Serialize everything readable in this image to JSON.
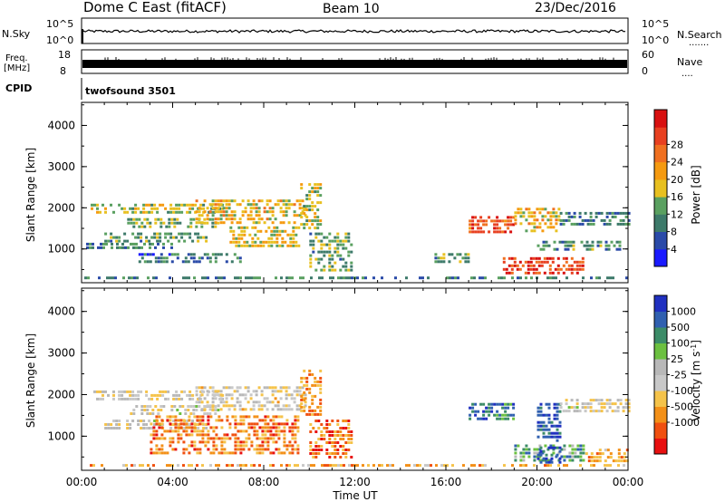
{
  "header": {
    "site": "Dome C East (fitACF)",
    "beam": "Beam 10",
    "date": "23/Dec/2016"
  },
  "noise": {
    "left_label": "N.Sky",
    "right_label": "N.Search",
    "right_dots": ".......",
    "left_ticks": [
      "10^5",
      "10^0"
    ],
    "right_ticks": [
      "10^5",
      "10^0"
    ]
  },
  "freq": {
    "left_label_1": "Freq.",
    "left_label_2": "[MHz]",
    "right_label": "Nave",
    "right_dots": "....",
    "left_ticks": [
      "18",
      "8"
    ],
    "right_ticks": [
      "60",
      "0"
    ]
  },
  "cpid": {
    "label": "CPID",
    "value": "twofsound 3501"
  },
  "colors": {
    "power_scale": [
      "#1a1aff",
      "#2a4aa8",
      "#3d7a6a",
      "#5aa060",
      "#e8c020",
      "#f59a10",
      "#f07020",
      "#e84020",
      "#d81010"
    ],
    "velocity_scale": [
      "#e81010",
      "#f05010",
      "#f39018",
      "#f5c34a",
      "#c8c8c8",
      "#b8b8b8",
      "#6cc040",
      "#3c8c68",
      "#3060b0",
      "#2030c0"
    ]
  },
  "chart_data": [
    {
      "type": "heatmap",
      "name": "power",
      "xlabel": "",
      "ylabel": "Slant Range [km]",
      "x_ticks": [
        "00:00",
        "04:00",
        "08:00",
        "12:00",
        "16:00",
        "20:00",
        "00:00"
      ],
      "y_ticks": [
        "1000",
        "2000",
        "3000",
        "4000"
      ],
      "xlim_hours": [
        0,
        24
      ],
      "ylim_km": [
        180,
        4560
      ],
      "colorbar": {
        "label": "Power [dB]",
        "ticks": [
          "4",
          "8",
          "12",
          "16",
          "20",
          "24",
          "28"
        ]
      },
      "regions": [
        {
          "x": [
            0.4,
            6.2
          ],
          "y": [
            1900,
            2100
          ],
          "level": 0.45
        },
        {
          "x": [
            2.0,
            6.0
          ],
          "y": [
            1550,
            1750
          ],
          "level": 0.4
        },
        {
          "x": [
            1.0,
            5.5
          ],
          "y": [
            1200,
            1400
          ],
          "level": 0.35
        },
        {
          "x": [
            0.2,
            4.0
          ],
          "y": [
            1000,
            1150
          ],
          "level": 0.3
        },
        {
          "x": [
            2.5,
            7.0
          ],
          "y": [
            700,
            900
          ],
          "level": 0.25
        },
        {
          "x": [
            5.0,
            9.8
          ],
          "y": [
            1600,
            2200
          ],
          "level": 0.55
        },
        {
          "x": [
            6.5,
            9.5
          ],
          "y": [
            1050,
            1550
          ],
          "level": 0.5
        },
        {
          "x": [
            9.6,
            10.5
          ],
          "y": [
            1500,
            2600
          ],
          "level": 0.45
        },
        {
          "x": [
            10.0,
            11.8
          ],
          "y": [
            500,
            1400
          ],
          "level": 0.35
        },
        {
          "x": [
            0.0,
            24.0
          ],
          "y": [
            250,
            330
          ],
          "level": 0.28
        },
        {
          "x": [
            17.0,
            19.0
          ],
          "y": [
            1400,
            1800
          ],
          "level": 0.8
        },
        {
          "x": [
            18.5,
            22.0
          ],
          "y": [
            400,
            800
          ],
          "level": 0.85
        },
        {
          "x": [
            19.0,
            21.0
          ],
          "y": [
            1400,
            2000
          ],
          "level": 0.55
        },
        {
          "x": [
            20.0,
            23.6
          ],
          "y": [
            1000,
            1200
          ],
          "level": 0.3
        },
        {
          "x": [
            21.0,
            24.0
          ],
          "y": [
            1600,
            1900
          ],
          "level": 0.25
        },
        {
          "x": [
            15.5,
            17.0
          ],
          "y": [
            700,
            900
          ],
          "level": 0.35
        }
      ]
    },
    {
      "type": "heatmap",
      "name": "velocity",
      "xlabel": "Time UT",
      "ylabel": "Slant Range [km]",
      "x_ticks": [
        "00:00",
        "04:00",
        "08:00",
        "12:00",
        "16:00",
        "20:00",
        "00:00"
      ],
      "y_ticks": [
        "1000",
        "2000",
        "3000",
        "4000"
      ],
      "xlim_hours": [
        0,
        24
      ],
      "ylim_km": [
        180,
        4560
      ],
      "colorbar": {
        "label": "Velocity [m s",
        "label_sup": "-1",
        "label_end": "]",
        "ticks": [
          "1000",
          "500",
          "100",
          "25",
          "-25",
          "-100",
          "-500",
          "-1000"
        ]
      },
      "regions": [
        {
          "x": [
            0.4,
            6.2
          ],
          "y": [
            1900,
            2100
          ],
          "level": 0.45
        },
        {
          "x": [
            2.0,
            6.0
          ],
          "y": [
            1550,
            1750
          ],
          "level": 0.48
        },
        {
          "x": [
            1.0,
            5.5
          ],
          "y": [
            1200,
            1400
          ],
          "level": 0.46
        },
        {
          "x": [
            5.0,
            9.8
          ],
          "y": [
            1600,
            2200
          ],
          "level": 0.44
        },
        {
          "x": [
            3.0,
            9.5
          ],
          "y": [
            600,
            1500
          ],
          "level": 0.22
        },
        {
          "x": [
            9.6,
            10.5
          ],
          "y": [
            1500,
            2600
          ],
          "level": 0.25
        },
        {
          "x": [
            10.0,
            11.8
          ],
          "y": [
            500,
            1400
          ],
          "level": 0.2
        },
        {
          "x": [
            0.0,
            24.0
          ],
          "y": [
            250,
            330
          ],
          "level": 0.3
        },
        {
          "x": [
            17.0,
            19.0
          ],
          "y": [
            1400,
            1800
          ],
          "level": 0.82
        },
        {
          "x": [
            19.0,
            22.0
          ],
          "y": [
            400,
            800
          ],
          "level": 0.72
        },
        {
          "x": [
            20.0,
            21.0
          ],
          "y": [
            400,
            1800
          ],
          "level": 0.9
        },
        {
          "x": [
            21.0,
            24.0
          ],
          "y": [
            1600,
            1900
          ],
          "level": 0.46
        },
        {
          "x": [
            22.0,
            24.0
          ],
          "y": [
            400,
            700
          ],
          "level": 0.28
        }
      ]
    }
  ]
}
